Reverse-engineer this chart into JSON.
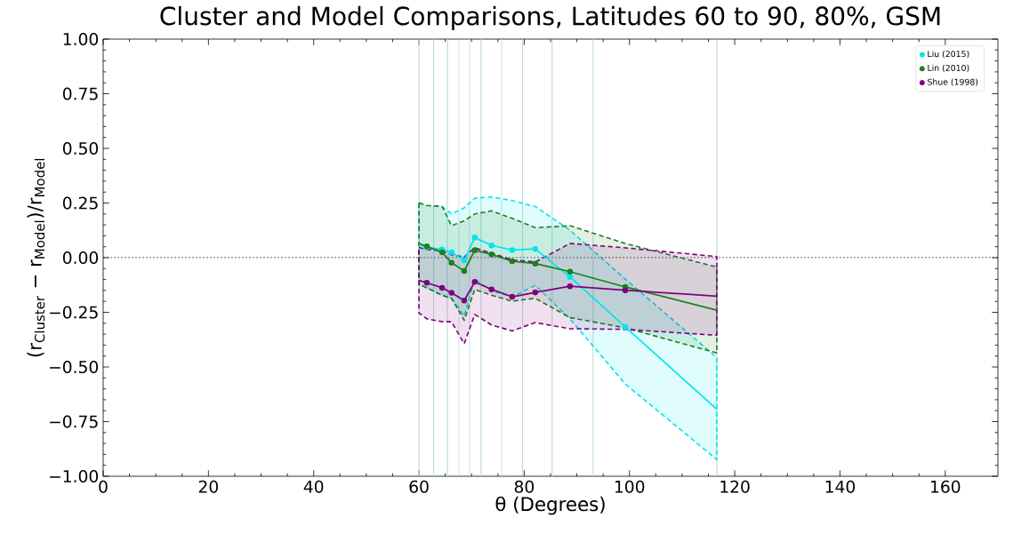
{
  "chart_data": {
    "type": "line",
    "title": "Cluster and Model Comparisons, Latitudes 60 to 90, 80%, GSM",
    "xlabel": "θ (Degrees)",
    "ylabel": "(r$_{Cluster}$ − r$_{Model}$)/r$_{Model}$",
    "xlim": [
      0,
      170
    ],
    "ylim": [
      -1,
      1
    ],
    "xticks": [
      0,
      20,
      40,
      60,
      80,
      100,
      120,
      140,
      160
    ],
    "yticks": [
      {
        "value": -1,
        "label": "−1.00"
      },
      {
        "value": -0.75,
        "label": "−0.75"
      },
      {
        "value": -0.5,
        "label": "−0.50"
      },
      {
        "value": -0.25,
        "label": "−0.25"
      },
      {
        "value": 0,
        "label": "0.00"
      },
      {
        "value": 0.25,
        "label": "0.25"
      },
      {
        "value": 0.5,
        "label": "0.50"
      },
      {
        "value": 0.75,
        "label": "0.75"
      },
      {
        "value": 1,
        "label": "1.00"
      }
    ],
    "grid": false,
    "legend": "top right",
    "marker": "circle",
    "line_style": "solid",
    "series": [
      {
        "name": "Liu (2015)",
        "color": "#00e5ee",
        "x": [
          60,
          61.5,
          64.4,
          66.2,
          68.6,
          70.6,
          73.8,
          77.7,
          82.1,
          88.7,
          99.2,
          116.6
        ],
        "values": [
          0.06,
          0.047,
          0.038,
          0.024,
          -0.012,
          0.092,
          0.056,
          0.035,
          0.04,
          -0.088,
          -0.317,
          -0.694
        ],
        "lower": [
          -0.12,
          -0.138,
          -0.172,
          -0.186,
          -0.267,
          -0.098,
          -0.152,
          -0.179,
          -0.127,
          -0.28,
          -0.578,
          -0.924
        ],
        "upper": [
          0.25,
          0.239,
          0.234,
          0.2,
          0.228,
          0.272,
          0.278,
          0.261,
          0.234,
          0.126,
          -0.098,
          -0.457
        ]
      },
      {
        "name": "Lin (2010)",
        "color": "#1a801a",
        "x": [
          60,
          61.5,
          64.4,
          66.2,
          68.6,
          70.6,
          73.8,
          77.7,
          82.1,
          88.7,
          99.2,
          116.6
        ],
        "values": [
          0.065,
          0.052,
          0.024,
          -0.023,
          -0.061,
          0.034,
          0.015,
          -0.016,
          -0.027,
          -0.064,
          -0.134,
          -0.24
        ],
        "lower": [
          -0.121,
          -0.138,
          -0.172,
          -0.186,
          -0.287,
          -0.145,
          -0.172,
          -0.199,
          -0.186,
          -0.274,
          -0.321,
          -0.436
        ],
        "upper": [
          0.251,
          0.239,
          0.234,
          0.146,
          0.169,
          0.2,
          0.214,
          0.18,
          0.137,
          0.146,
          0.065,
          -0.043
        ]
      },
      {
        "name": "Shue (1998)",
        "color": "#800080",
        "x": [
          60,
          61.5,
          64.4,
          66.2,
          68.6,
          70.6,
          73.8,
          77.7,
          82.1,
          88.7,
          99.2,
          116.6
        ],
        "values": [
          -0.104,
          -0.115,
          -0.138,
          -0.161,
          -0.196,
          -0.111,
          -0.145,
          -0.179,
          -0.159,
          -0.131,
          -0.149,
          -0.176
        ],
        "lower": [
          -0.253,
          -0.28,
          -0.293,
          -0.293,
          -0.394,
          -0.26,
          -0.308,
          -0.335,
          -0.297,
          -0.325,
          -0.328,
          -0.355
        ],
        "upper": [
          0.047,
          0.038,
          0.031,
          0.012,
          0.004,
          0.045,
          0.02,
          -0.01,
          -0.02,
          0.065,
          0.045,
          0.005
        ]
      }
    ],
    "ref_lines": [
      {
        "axis": "y",
        "value": 0,
        "color": "#000000",
        "line_style": "dotted"
      },
      {
        "axis": "x",
        "value": 60,
        "color": "#b8d8d8"
      },
      {
        "axis": "x",
        "value": 62.8,
        "color": "#b8d8d8"
      },
      {
        "axis": "x",
        "value": 65.4,
        "color": "#b8d8d8"
      },
      {
        "axis": "x",
        "value": 67.6,
        "color": "#b8d8d8"
      },
      {
        "axis": "x",
        "value": 69.6,
        "color": "#b8d8d8"
      },
      {
        "axis": "x",
        "value": 71.8,
        "color": "#b8d8d8"
      },
      {
        "axis": "x",
        "value": 75.7,
        "color": "#b8d8d8"
      },
      {
        "axis": "x",
        "value": 79.7,
        "color": "#b8d8d8"
      },
      {
        "axis": "x",
        "value": 85.3,
        "color": "#b8d8d8"
      },
      {
        "axis": "x",
        "value": 93.1,
        "color": "#b8d8d8"
      },
      {
        "axis": "x",
        "value": 116.6,
        "color": "#b8d8d8"
      }
    ]
  }
}
